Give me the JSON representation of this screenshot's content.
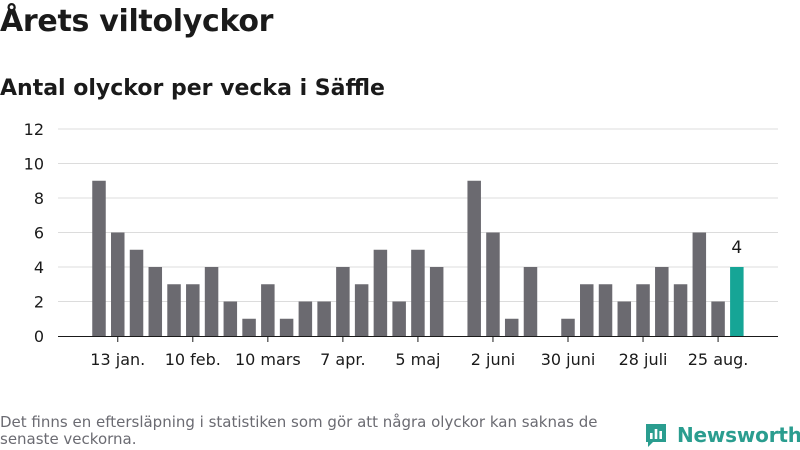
{
  "header": {
    "title": "Årets viltolyckor",
    "subtitle": "Antal olyckor per vecka i Säffle"
  },
  "footer": {
    "note": "Det finns en eftersläpning i statistiken som gör att några olyckor kan saknas de senaste veckorna.",
    "brand": "Newsworthy"
  },
  "colors": {
    "bar": "#6b6a70",
    "highlight": "#16a596",
    "grid": "#dcdcdc",
    "axis": "#1a1a1a",
    "brand": "#2a9d8f"
  },
  "chart_data": {
    "type": "bar",
    "title": "Antal olyckor per vecka i Säffle",
    "xlabel": "",
    "ylabel": "",
    "ylim": [
      0,
      12
    ],
    "yticks": [
      "0",
      "2",
      "4",
      "6",
      "8",
      "10",
      "12"
    ],
    "grid": true,
    "legend": "none",
    "x_tick_labels": [
      {
        "week": 2,
        "label": "13 jan."
      },
      {
        "week": 6,
        "label": "10 feb."
      },
      {
        "week": 10,
        "label": "10 mars"
      },
      {
        "week": 14,
        "label": "7 apr."
      },
      {
        "week": 18,
        "label": "5 maj"
      },
      {
        "week": 22,
        "label": "2 juni"
      },
      {
        "week": 26,
        "label": "30 juni"
      },
      {
        "week": 30,
        "label": "28 juli"
      },
      {
        "week": 34,
        "label": "25 aug."
      }
    ],
    "weeks": [
      1,
      2,
      3,
      4,
      5,
      6,
      7,
      8,
      9,
      10,
      11,
      12,
      13,
      14,
      15,
      16,
      17,
      18,
      19,
      20,
      21,
      22,
      23,
      24,
      25,
      26,
      27,
      28,
      29,
      30,
      31,
      32,
      33,
      34,
      35
    ],
    "values": [
      9,
      6,
      5,
      4,
      3,
      3,
      4,
      2,
      1,
      3,
      1,
      2,
      2,
      4,
      3,
      5,
      2,
      5,
      4,
      0,
      9,
      6,
      1,
      4,
      0,
      1,
      3,
      3,
      2,
      3,
      4,
      3,
      6,
      2,
      4
    ],
    "highlight_index": 34,
    "highlight_label": "4"
  }
}
